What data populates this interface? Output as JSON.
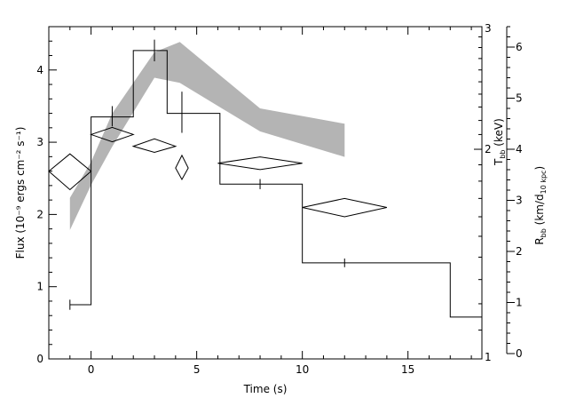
{
  "chart_data": {
    "type": "line",
    "title": "",
    "axes": {
      "x": {
        "label": "Time (s)",
        "range": [
          -2,
          18.5
        ],
        "major_ticks": [
          0,
          5,
          10,
          15
        ],
        "tick_labels": [
          "0",
          "5",
          "10",
          "15"
        ],
        "minor_step": 1
      },
      "y_left": {
        "label": "Flux (10⁻⁹ ergs cm⁻² s⁻¹)",
        "range": [
          0,
          4.6
        ],
        "major_ticks": [
          0,
          1,
          2,
          3,
          4
        ],
        "tick_labels": [
          "0",
          "1",
          "2",
          "3",
          "4"
        ]
      },
      "y_right_inner": {
        "label": "T_bb (keV)",
        "label_main": "T",
        "label_sub": "bb",
        "label_rest": " (keV)",
        "scale": "log",
        "range": [
          1,
          3
        ],
        "major_ticks": [
          1,
          2,
          3
        ],
        "tick_labels": [
          "1",
          "2",
          "3"
        ],
        "minor_ticks": [
          1.1,
          1.2,
          1.3,
          1.4,
          1.5,
          1.6,
          1.7,
          1.8,
          1.9,
          2.1,
          2.2,
          2.3,
          2.4,
          2.5,
          2.6,
          2.7,
          2.8,
          2.9
        ]
      },
      "y_right_outer": {
        "label": "R_bb (km/d_10 kpc)",
        "label_main": "R",
        "label_sub1": "bb",
        "label_mid": " (km/d",
        "label_sub2": "10 kpc",
        "label_end": ")",
        "range": [
          0,
          6.4
        ],
        "major_ticks": [
          0,
          1,
          2,
          3,
          4,
          5,
          6
        ],
        "tick_labels": [
          "0",
          "1",
          "2",
          "3",
          "4",
          "5",
          "6"
        ]
      }
    },
    "series": [
      {
        "kind": "step",
        "axis": "y_left",
        "bins": [
          {
            "x0": -1,
            "x1": 0,
            "y": 0.75
          },
          {
            "x0": 0,
            "x1": 2,
            "y": 3.35
          },
          {
            "x0": 2,
            "x1": 3.6,
            "y": 4.27
          },
          {
            "x0": 3.6,
            "x1": 6.1,
            "y": 3.4
          },
          {
            "x0": 6.1,
            "x1": 10,
            "y": 2.42
          },
          {
            "x0": 10,
            "x1": 17,
            "y": 1.33
          },
          {
            "x0": 17,
            "x1": 18.5,
            "y": 0.58
          }
        ],
        "error_bars": [
          {
            "x": -1,
            "lo": 0.68,
            "hi": 0.82
          },
          {
            "x": 1,
            "lo": 3.22,
            "hi": 3.5
          },
          {
            "x": 3,
            "lo": 4.12,
            "hi": 4.42
          },
          {
            "x": 4.3,
            "lo": 3.13,
            "hi": 3.7
          },
          {
            "x": 8,
            "lo": 2.35,
            "hi": 2.49
          },
          {
            "x": 12,
            "lo": 1.27,
            "hi": 1.39
          }
        ]
      },
      {
        "kind": "diamonds",
        "axis": "y_right_inner",
        "points": [
          {
            "x": -1,
            "y": 1.86,
            "xerr": 1.0,
            "lo": 1.75,
            "hi": 1.97
          },
          {
            "x": 1,
            "y": 2.1,
            "xerr": 1.0,
            "lo": 2.05,
            "hi": 2.15
          },
          {
            "x": 3,
            "y": 2.02,
            "xerr": 1.0,
            "lo": 1.98,
            "hi": 2.07
          },
          {
            "x": 4.3,
            "y": 1.88,
            "xerr": 0.3,
            "lo": 1.81,
            "hi": 1.96
          },
          {
            "x": 8,
            "y": 1.91,
            "xerr": 2.0,
            "lo": 1.87,
            "hi": 1.95
          },
          {
            "x": 12,
            "y": 1.65,
            "xerr": 2.0,
            "lo": 1.6,
            "hi": 1.7
          }
        ]
      },
      {
        "kind": "band",
        "axis": "y_right_outer",
        "color": "#b4b4b4",
        "x": [
          -1,
          0,
          1,
          3,
          4.2,
          8,
          12
        ],
        "lower": [
          2.42,
          3.3,
          4.05,
          5.4,
          5.3,
          4.35,
          3.85
        ],
        "upper": [
          3.05,
          3.75,
          4.7,
          5.9,
          6.1,
          4.8,
          4.5
        ]
      }
    ]
  }
}
